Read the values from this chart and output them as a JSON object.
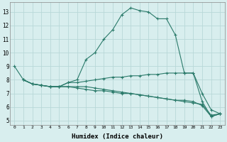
{
  "title": "",
  "xlabel": "Humidex (Indice chaleur)",
  "background_color": "#d8eeee",
  "grid_color": "#b8d8d8",
  "line_color": "#2a7a6a",
  "xlim": [
    -0.5,
    23.5
  ],
  "ylim": [
    4.7,
    13.7
  ],
  "xticks": [
    0,
    1,
    2,
    3,
    4,
    5,
    6,
    7,
    8,
    9,
    10,
    11,
    12,
    13,
    14,
    15,
    16,
    17,
    18,
    19,
    20,
    21,
    22,
    23
  ],
  "yticks": [
    5,
    6,
    7,
    8,
    9,
    10,
    11,
    12,
    13
  ],
  "series": [
    {
      "x": [
        0,
        1,
        2,
        3,
        4,
        5,
        6,
        7,
        8,
        9,
        10,
        11,
        12,
        13,
        14,
        15,
        16,
        17,
        18,
        19,
        20,
        21,
        22,
        23
      ],
      "y": [
        9.0,
        8.0,
        7.7,
        7.6,
        7.5,
        7.5,
        7.8,
        8.0,
        9.5,
        10.0,
        11.0,
        11.7,
        12.8,
        13.3,
        13.1,
        13.0,
        12.5,
        12.5,
        11.3,
        8.5,
        8.5,
        6.4,
        5.3,
        5.5
      ]
    },
    {
      "x": [
        1,
        2,
        3,
        4,
        5,
        6,
        7,
        8,
        9,
        10,
        11,
        12,
        13,
        14,
        15,
        16,
        17,
        18,
        19,
        20,
        21,
        22,
        23
      ],
      "y": [
        8.0,
        7.7,
        7.6,
        7.5,
        7.5,
        7.8,
        7.8,
        7.9,
        8.0,
        8.1,
        8.2,
        8.2,
        8.3,
        8.3,
        8.4,
        8.4,
        8.5,
        8.5,
        8.5,
        8.5,
        7.0,
        5.8,
        5.5
      ]
    },
    {
      "x": [
        1,
        2,
        3,
        4,
        5,
        6,
        7,
        8,
        9,
        10,
        11,
        12,
        13,
        14,
        15,
        16,
        17,
        18,
        19,
        20,
        21,
        22,
        23
      ],
      "y": [
        8.0,
        7.7,
        7.6,
        7.5,
        7.5,
        7.5,
        7.4,
        7.3,
        7.2,
        7.2,
        7.1,
        7.0,
        7.0,
        6.9,
        6.8,
        6.7,
        6.6,
        6.5,
        6.4,
        6.3,
        6.2,
        5.4,
        5.5
      ]
    },
    {
      "x": [
        1,
        2,
        3,
        4,
        5,
        6,
        7,
        8,
        9,
        10,
        11,
        12,
        13,
        14,
        15,
        16,
        17,
        18,
        19,
        20,
        21,
        22,
        23
      ],
      "y": [
        8.0,
        7.7,
        7.6,
        7.5,
        7.5,
        7.5,
        7.5,
        7.5,
        7.4,
        7.3,
        7.2,
        7.1,
        7.0,
        6.9,
        6.8,
        6.7,
        6.6,
        6.5,
        6.5,
        6.4,
        6.1,
        5.3,
        5.5
      ]
    }
  ]
}
